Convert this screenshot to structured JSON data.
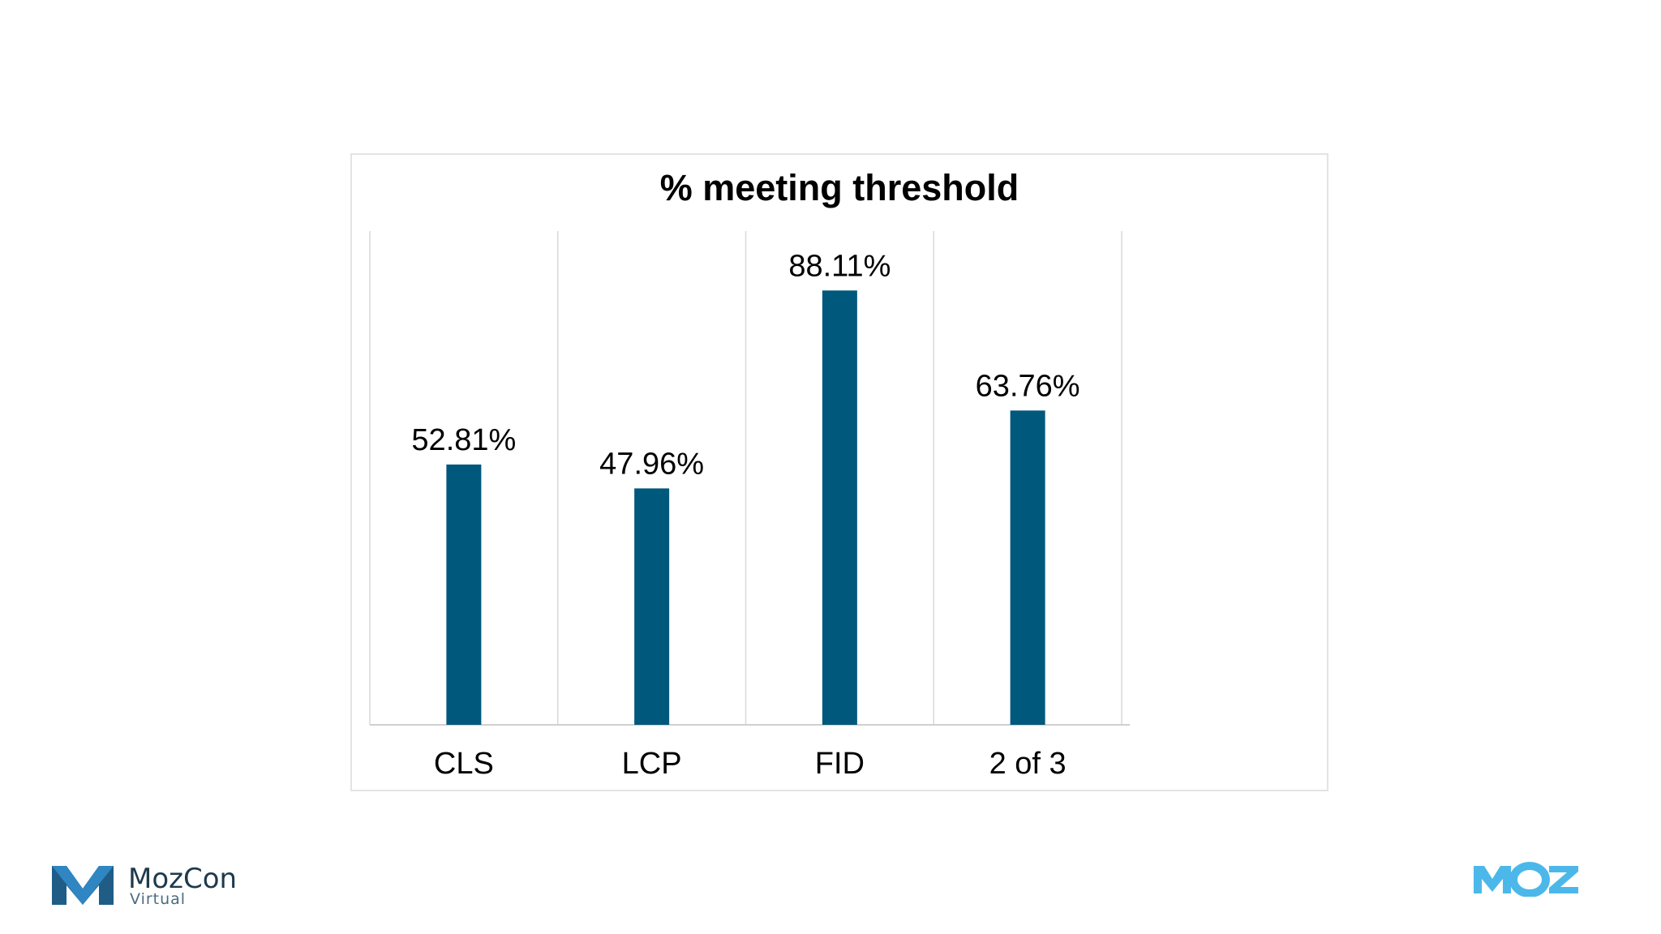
{
  "chart_data": {
    "type": "bar",
    "title": "% meeting threshold",
    "categories": [
      "CLS",
      "LCP",
      "FID",
      "2 of 3"
    ],
    "values": [
      52.81,
      47.96,
      88.11,
      63.76
    ],
    "value_labels": [
      "52.81%",
      "47.96%",
      "88.11%",
      "63.76%"
    ],
    "ylim": [
      0,
      100
    ],
    "grid": "vertical separators",
    "bar_color": "#00587c"
  },
  "branding": {
    "left_logo": "MozCon",
    "left_logo_sub": "Virtual",
    "right_logo": "MOZ",
    "left_logo_color": "#2a7ab0",
    "right_logo_color": "#4cb8ea"
  }
}
